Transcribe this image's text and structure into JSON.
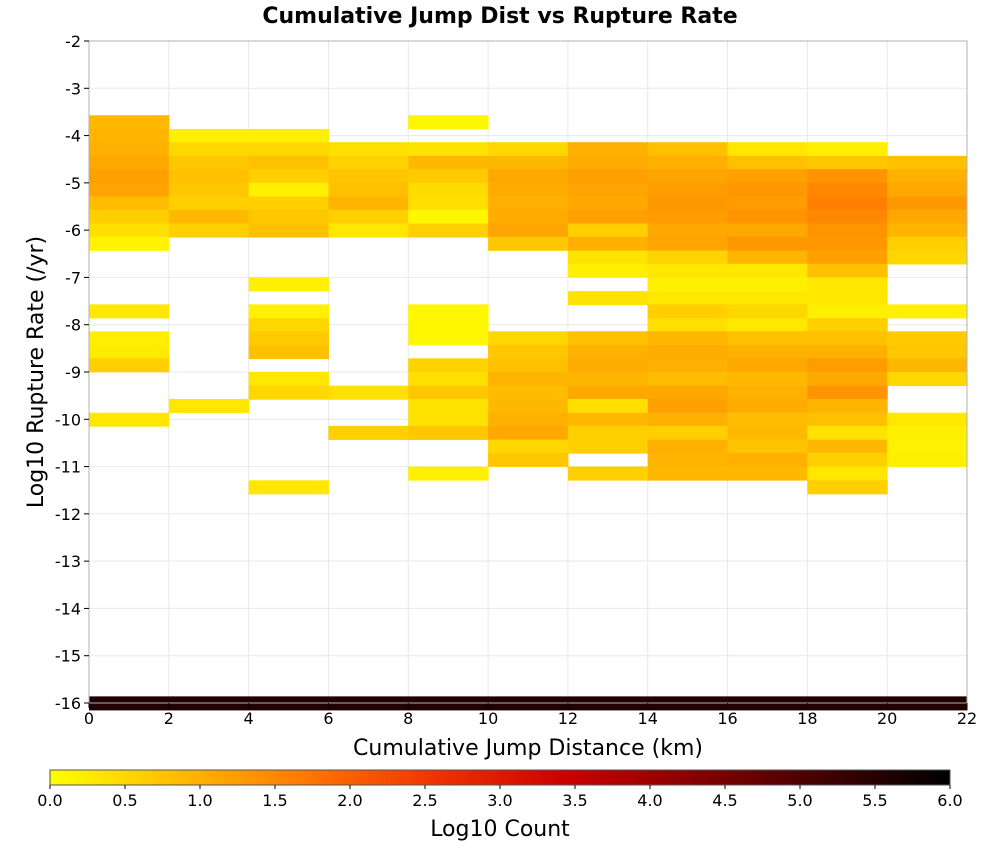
{
  "chart_data": {
    "type": "heatmap",
    "title": "Cumulative Jump Dist vs Rupture Rate",
    "xlabel": "Cumulative Jump Distance (km)",
    "ylabel": "Log10 Rupture Rate (/yr)",
    "xlim": [
      0,
      22
    ],
    "ylim": [
      -16,
      -2
    ],
    "x_ticks": [
      "0",
      "2",
      "4",
      "6",
      "8",
      "10",
      "12",
      "14",
      "16",
      "18",
      "20",
      "22"
    ],
    "y_ticks": [
      "-2",
      "-3",
      "-4",
      "-5",
      "-6",
      "-7",
      "-8",
      "-9",
      "-10",
      "-11",
      "-12",
      "-13",
      "-14",
      "-15",
      "-16"
    ],
    "grid": true,
    "x_bin_width": 2,
    "y_bin_height": 0.286,
    "colorbar": {
      "label": "Log10 Count",
      "range": [
        0,
        6
      ],
      "ticks": [
        "0.0",
        "0.5",
        "1.0",
        "1.5",
        "2.0",
        "2.5",
        "3.0",
        "3.5",
        "4.0",
        "4.5",
        "5.0",
        "5.5",
        "6.0"
      ],
      "colors": [
        "#ffff00",
        "#ffbb00",
        "#ff7700",
        "#ee3300",
        "#cc0000",
        "#880000",
        "#440000",
        "#000000"
      ]
    },
    "cell_encoding": "each cell = [x_bin_start_km, y_bin_top_log10_rate, log10_count]",
    "cells": [
      [
        0,
        -3.57,
        0.9
      ],
      [
        0,
        -3.86,
        0.95
      ],
      [
        0,
        -4.14,
        1.0
      ],
      [
        0,
        -4.43,
        1.1
      ],
      [
        0,
        -4.71,
        1.2
      ],
      [
        0,
        -5.0,
        1.15
      ],
      [
        0,
        -5.29,
        0.85
      ],
      [
        0,
        -5.57,
        0.6
      ],
      [
        0,
        -5.86,
        0.4
      ],
      [
        0,
        -6.14,
        0.15
      ],
      [
        0,
        -7.57,
        0.3
      ],
      [
        0,
        -8.14,
        0.2
      ],
      [
        0,
        -8.43,
        0.25
      ],
      [
        0,
        -8.71,
        0.6
      ],
      [
        0,
        -9.86,
        0.3
      ],
      [
        2,
        -3.86,
        0.2
      ],
      [
        2,
        -4.14,
        0.5
      ],
      [
        2,
        -4.43,
        0.7
      ],
      [
        2,
        -4.71,
        0.8
      ],
      [
        2,
        -5.0,
        0.7
      ],
      [
        2,
        -5.29,
        0.6
      ],
      [
        2,
        -5.57,
        0.9
      ],
      [
        2,
        -5.86,
        0.6
      ],
      [
        2,
        -9.57,
        0.3
      ],
      [
        4,
        -3.86,
        0.2
      ],
      [
        4,
        -4.14,
        0.5
      ],
      [
        4,
        -4.43,
        0.8
      ],
      [
        4,
        -4.71,
        0.6
      ],
      [
        4,
        -5.0,
        0.2
      ],
      [
        4,
        -5.29,
        0.6
      ],
      [
        4,
        -5.57,
        0.7
      ],
      [
        4,
        -5.86,
        0.8
      ],
      [
        4,
        -7.0,
        0.2
      ],
      [
        4,
        -7.57,
        0.2
      ],
      [
        4,
        -7.86,
        0.5
      ],
      [
        4,
        -8.14,
        0.65
      ],
      [
        4,
        -8.43,
        0.8
      ],
      [
        4,
        -9.0,
        0.3
      ],
      [
        4,
        -9.29,
        0.5
      ],
      [
        4,
        -11.29,
        0.3
      ],
      [
        6,
        -4.14,
        0.4
      ],
      [
        6,
        -4.43,
        0.55
      ],
      [
        6,
        -4.71,
        0.75
      ],
      [
        6,
        -5.0,
        0.8
      ],
      [
        6,
        -5.29,
        0.95
      ],
      [
        6,
        -5.57,
        0.6
      ],
      [
        6,
        -5.86,
        0.3
      ],
      [
        6,
        -9.29,
        0.4
      ],
      [
        6,
        -10.14,
        0.6
      ],
      [
        8,
        -3.57,
        0.1
      ],
      [
        8,
        -4.14,
        0.35
      ],
      [
        8,
        -4.43,
        0.9
      ],
      [
        8,
        -4.71,
        0.65
      ],
      [
        8,
        -5.0,
        0.45
      ],
      [
        8,
        -5.29,
        0.4
      ],
      [
        8,
        -5.57,
        0.1
      ],
      [
        8,
        -5.86,
        0.6
      ],
      [
        8,
        -7.57,
        0.1
      ],
      [
        8,
        -7.86,
        0.1
      ],
      [
        8,
        -8.14,
        0.1
      ],
      [
        8,
        -8.71,
        0.55
      ],
      [
        8,
        -9.0,
        0.4
      ],
      [
        8,
        -9.29,
        0.7
      ],
      [
        8,
        -9.57,
        0.35
      ],
      [
        8,
        -9.86,
        0.35
      ],
      [
        8,
        -10.14,
        0.7
      ],
      [
        8,
        -11.0,
        0.2
      ],
      [
        10,
        -4.14,
        0.5
      ],
      [
        10,
        -4.43,
        0.9
      ],
      [
        10,
        -4.71,
        1.1
      ],
      [
        10,
        -5.0,
        1.05
      ],
      [
        10,
        -5.29,
        1.0
      ],
      [
        10,
        -5.57,
        1.05
      ],
      [
        10,
        -5.86,
        1.15
      ],
      [
        10,
        -6.14,
        0.7
      ],
      [
        10,
        -8.14,
        0.5
      ],
      [
        10,
        -8.43,
        0.7
      ],
      [
        10,
        -8.71,
        0.8
      ],
      [
        10,
        -9.0,
        0.95
      ],
      [
        10,
        -9.29,
        0.85
      ],
      [
        10,
        -9.57,
        0.9
      ],
      [
        10,
        -9.86,
        1.0
      ],
      [
        10,
        -10.14,
        1.1
      ],
      [
        10,
        -10.43,
        0.5
      ],
      [
        10,
        -10.71,
        0.7
      ],
      [
        12,
        -4.14,
        1.0
      ],
      [
        12,
        -4.43,
        1.05
      ],
      [
        12,
        -4.71,
        1.2
      ],
      [
        12,
        -5.0,
        1.15
      ],
      [
        12,
        -5.29,
        1.1
      ],
      [
        12,
        -5.57,
        1.2
      ],
      [
        12,
        -5.86,
        0.6
      ],
      [
        12,
        -6.14,
        1.0
      ],
      [
        12,
        -6.43,
        0.35
      ],
      [
        12,
        -6.71,
        0.2
      ],
      [
        12,
        -7.29,
        0.35
      ],
      [
        12,
        -8.14,
        0.8
      ],
      [
        12,
        -8.43,
        1.0
      ],
      [
        12,
        -8.71,
        1.05
      ],
      [
        12,
        -9.0,
        0.95
      ],
      [
        12,
        -9.29,
        1.1
      ],
      [
        12,
        -9.57,
        0.4
      ],
      [
        12,
        -9.86,
        0.9
      ],
      [
        12,
        -10.14,
        0.6
      ],
      [
        12,
        -10.43,
        0.6
      ],
      [
        12,
        -11.0,
        0.6
      ],
      [
        14,
        -4.14,
        0.8
      ],
      [
        14,
        -4.43,
        1.0
      ],
      [
        14,
        -4.71,
        1.15
      ],
      [
        14,
        -5.0,
        1.25
      ],
      [
        14,
        -5.29,
        1.3
      ],
      [
        14,
        -5.57,
        1.25
      ],
      [
        14,
        -5.86,
        1.1
      ],
      [
        14,
        -6.14,
        1.15
      ],
      [
        14,
        -6.43,
        0.55
      ],
      [
        14,
        -6.71,
        0.3
      ],
      [
        14,
        -7.0,
        0.2
      ],
      [
        14,
        -7.29,
        0.3
      ],
      [
        14,
        -7.57,
        0.6
      ],
      [
        14,
        -7.86,
        0.4
      ],
      [
        14,
        -8.14,
        0.9
      ],
      [
        14,
        -8.43,
        1.05
      ],
      [
        14,
        -8.71,
        1.0
      ],
      [
        14,
        -9.0,
        0.85
      ],
      [
        14,
        -9.29,
        1.1
      ],
      [
        14,
        -9.57,
        1.2
      ],
      [
        14,
        -9.86,
        1.0
      ],
      [
        14,
        -10.14,
        0.6
      ],
      [
        14,
        -10.43,
        1.0
      ],
      [
        14,
        -10.71,
        0.95
      ],
      [
        14,
        -11.0,
        0.9
      ],
      [
        16,
        -4.14,
        0.3
      ],
      [
        16,
        -4.43,
        0.8
      ],
      [
        16,
        -4.71,
        1.2
      ],
      [
        16,
        -5.0,
        1.3
      ],
      [
        16,
        -5.29,
        1.25
      ],
      [
        16,
        -5.57,
        1.35
      ],
      [
        16,
        -5.86,
        1.1
      ],
      [
        16,
        -6.14,
        1.3
      ],
      [
        16,
        -6.43,
        0.95
      ],
      [
        16,
        -6.71,
        0.3
      ],
      [
        16,
        -7.0,
        0.2
      ],
      [
        16,
        -7.29,
        0.3
      ],
      [
        16,
        -7.57,
        0.5
      ],
      [
        16,
        -7.86,
        0.3
      ],
      [
        16,
        -8.14,
        0.8
      ],
      [
        16,
        -8.43,
        1.0
      ],
      [
        16,
        -8.71,
        1.1
      ],
      [
        16,
        -9.0,
        0.9
      ],
      [
        16,
        -9.29,
        1.0
      ],
      [
        16,
        -9.57,
        1.05
      ],
      [
        16,
        -9.86,
        0.85
      ],
      [
        16,
        -10.14,
        0.9
      ],
      [
        16,
        -10.43,
        0.75
      ],
      [
        16,
        -10.71,
        1.0
      ],
      [
        16,
        -11.0,
        0.9
      ],
      [
        18,
        -4.14,
        0.2
      ],
      [
        18,
        -4.43,
        0.7
      ],
      [
        18,
        -4.71,
        1.35
      ],
      [
        18,
        -5.0,
        1.5
      ],
      [
        18,
        -5.29,
        1.6
      ],
      [
        18,
        -5.57,
        1.5
      ],
      [
        18,
        -5.86,
        1.35
      ],
      [
        18,
        -6.14,
        1.3
      ],
      [
        18,
        -6.43,
        1.2
      ],
      [
        18,
        -6.71,
        0.8
      ],
      [
        18,
        -7.0,
        0.3
      ],
      [
        18,
        -7.29,
        0.3
      ],
      [
        18,
        -7.57,
        0.2
      ],
      [
        18,
        -7.86,
        0.6
      ],
      [
        18,
        -8.14,
        0.8
      ],
      [
        18,
        -8.43,
        1.0
      ],
      [
        18,
        -8.71,
        1.25
      ],
      [
        18,
        -9.0,
        1.1
      ],
      [
        18,
        -9.29,
        1.35
      ],
      [
        18,
        -9.57,
        0.95
      ],
      [
        18,
        -9.86,
        0.8
      ],
      [
        18,
        -10.14,
        0.35
      ],
      [
        18,
        -10.43,
        0.9
      ],
      [
        18,
        -10.71,
        0.6
      ],
      [
        18,
        -11.0,
        0.3
      ],
      [
        18,
        -11.29,
        0.6
      ],
      [
        20,
        -4.43,
        0.8
      ],
      [
        20,
        -4.71,
        1.0
      ],
      [
        20,
        -5.0,
        1.1
      ],
      [
        20,
        -5.29,
        1.3
      ],
      [
        20,
        -5.57,
        1.1
      ],
      [
        20,
        -5.86,
        0.95
      ],
      [
        20,
        -6.14,
        0.6
      ],
      [
        20,
        -6.43,
        0.5
      ],
      [
        20,
        -7.57,
        0.2
      ],
      [
        20,
        -8.14,
        0.65
      ],
      [
        20,
        -8.43,
        0.7
      ],
      [
        20,
        -8.71,
        0.9
      ],
      [
        20,
        -9.0,
        0.5
      ],
      [
        20,
        -9.86,
        0.3
      ],
      [
        20,
        -10.14,
        0.2
      ],
      [
        20,
        -10.43,
        0.15
      ],
      [
        20,
        -10.71,
        0.2
      ],
      [
        0,
        -15.86,
        5.6
      ],
      [
        2,
        -15.86,
        5.6
      ],
      [
        4,
        -15.86,
        5.6
      ],
      [
        6,
        -15.86,
        5.6
      ],
      [
        8,
        -15.86,
        5.6
      ],
      [
        10,
        -15.86,
        5.6
      ],
      [
        12,
        -15.86,
        5.6
      ],
      [
        14,
        -15.86,
        5.6
      ],
      [
        16,
        -15.86,
        5.6
      ],
      [
        18,
        -15.86,
        5.6
      ],
      [
        20,
        -15.86,
        5.6
      ]
    ]
  }
}
